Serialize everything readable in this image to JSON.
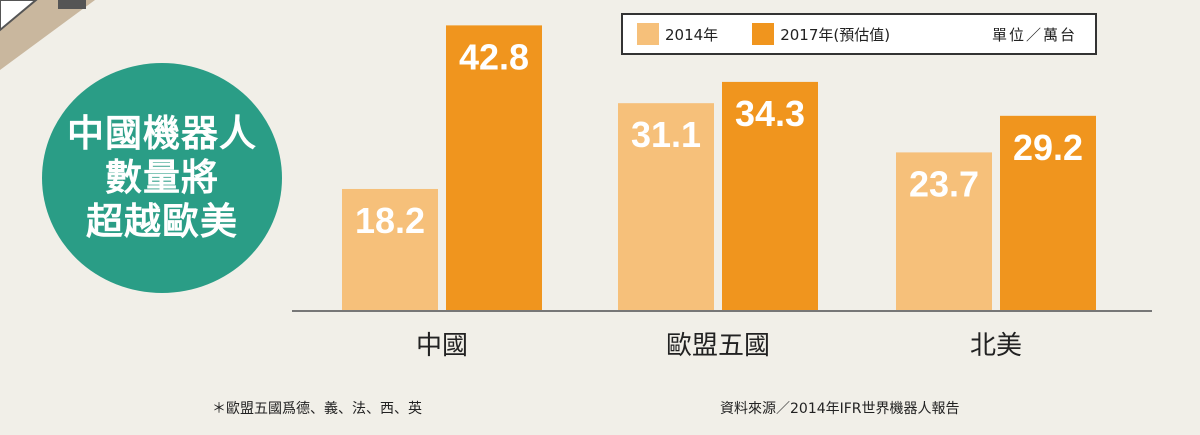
{
  "badge": {
    "text": "中國機器人\n數量將\n超越歐美"
  },
  "legend": {
    "series_2014": "2014年",
    "series_2017": "2017年(預估值)",
    "unit": "單位／萬台"
  },
  "footnotes": {
    "note": "＊歐盟五國爲德、義、法、西、英",
    "source": "資料來源／2014年IFR世界機器人報告"
  },
  "colors": {
    "series_2014": "#f6c07a",
    "series_2017": "#f0951e",
    "badge": "#2a9d86",
    "background": "#f1efe8"
  },
  "chart_data": {
    "type": "bar",
    "categories": [
      "中國",
      "歐盟五國",
      "北美"
    ],
    "series": [
      {
        "name": "2014年",
        "values": [
          18.2,
          31.1,
          23.7
        ]
      },
      {
        "name": "2017年(預估值)",
        "values": [
          42.8,
          34.3,
          29.2
        ]
      }
    ],
    "data_labels": [
      [
        "18.2",
        "31.1",
        "23.7"
      ],
      [
        "42.8",
        "34.3",
        "29.2"
      ]
    ],
    "ylabel": "單位／萬台",
    "legend_position": "top-right",
    "grid": false,
    "ylim": [
      0,
      45
    ]
  }
}
